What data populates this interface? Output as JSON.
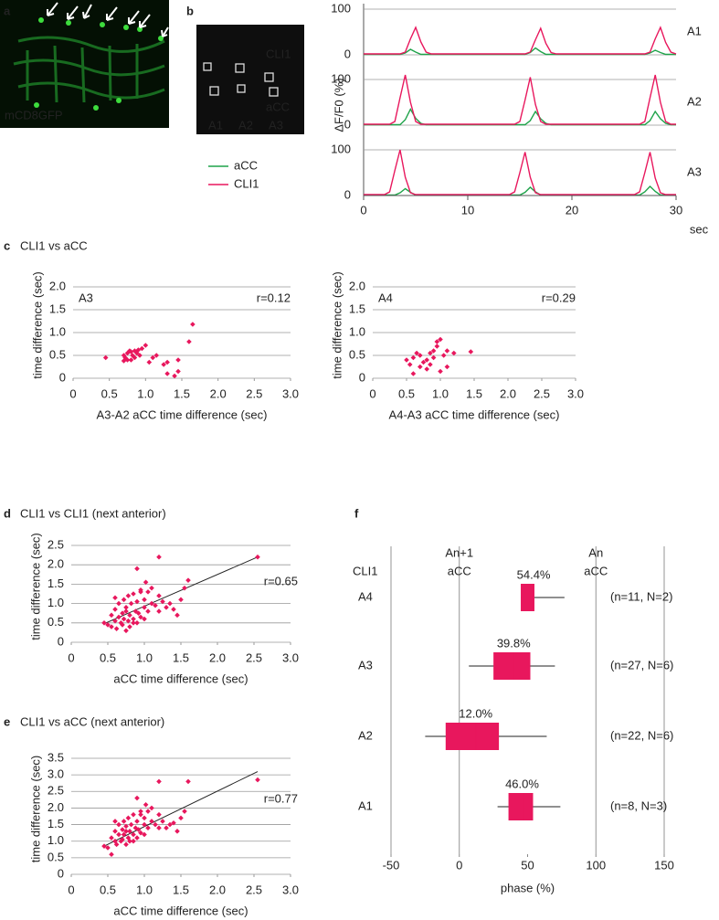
{
  "figure": {
    "panel_labels": [
      "a",
      "b",
      "c",
      "d",
      "e",
      "f"
    ],
    "headings": [
      "CLI1 vs aCC",
      "CLI1 vs CLI1 (next anterior)",
      "CLI1 vs aCC (next anterior)"
    ],
    "image_a": {
      "text": "mCD8GFP"
    },
    "image_b": {
      "cells": [
        "CLI1",
        "aCC"
      ],
      "segments": [
        "A1",
        "A2",
        "A3"
      ]
    }
  },
  "chart_data": [
    {
      "type": "trace",
      "xlabel": "sec",
      "ylabel": "ΔF/F0 (%)",
      "xlim": [
        0,
        30
      ],
      "xticks": [
        0,
        10,
        20,
        30
      ],
      "ylim": [
        0,
        120
      ],
      "yticks": [
        0,
        100
      ],
      "series": [
        {
          "name": "aCC",
          "color": "#1fa34a"
        },
        {
          "name": "CLI1",
          "color": "#e8175d"
        }
      ],
      "x": [
        0,
        0.5,
        1,
        1.5,
        2,
        2.5,
        3,
        3.5,
        4,
        4.5,
        5,
        5.5,
        6,
        6.5,
        7,
        7.5,
        8,
        8.5,
        9,
        9.5,
        10,
        10.5,
        11,
        11.5,
        12,
        12.5,
        13,
        13.5,
        14,
        14.5,
        15,
        15.5,
        16,
        16.5,
        17,
        17.5,
        18,
        18.5,
        19,
        19.5,
        20,
        20.5,
        21,
        21.5,
        22,
        22.5,
        23,
        23.5,
        24,
        24.5,
        25,
        25.5,
        26,
        26.5,
        27,
        27.5,
        28,
        28.5,
        29,
        29.5,
        30
      ],
      "rows": [
        {
          "label": "A1",
          "values": [
            [
              1,
              1,
              1,
              1,
              1,
              1,
              1,
              1,
              4,
              12,
              6,
              1,
              1,
              1,
              1,
              1,
              1,
              1,
              1,
              1,
              1,
              1,
              1,
              1,
              1,
              1,
              1,
              1,
              1,
              1,
              1,
              1,
              5,
              15,
              7,
              1,
              1,
              1,
              1,
              1,
              1,
              1,
              1,
              1,
              1,
              1,
              1,
              1,
              1,
              1,
              1,
              1,
              1,
              1,
              1,
              4,
              10,
              5,
              1,
              1,
              1
            ],
            [
              2,
              2,
              2,
              2,
              2,
              2,
              2,
              2,
              6,
              35,
              60,
              28,
              6,
              2,
              2,
              2,
              2,
              2,
              2,
              2,
              2,
              2,
              2,
              2,
              2,
              2,
              2,
              2,
              2,
              2,
              2,
              2,
              6,
              33,
              58,
              25,
              5,
              2,
              2,
              2,
              2,
              2,
              2,
              2,
              2,
              2,
              2,
              2,
              2,
              2,
              2,
              2,
              2,
              2,
              2,
              6,
              35,
              60,
              27,
              6,
              2
            ]
          ]
        },
        {
          "label": "A2",
          "values": [
            [
              1,
              1,
              1,
              1,
              1,
              1,
              1,
              1,
              12,
              35,
              15,
              4,
              1,
              1,
              1,
              1,
              1,
              1,
              1,
              1,
              1,
              1,
              1,
              1,
              1,
              1,
              1,
              1,
              1,
              1,
              1,
              1,
              10,
              30,
              14,
              4,
              1,
              1,
              1,
              1,
              1,
              1,
              1,
              1,
              1,
              1,
              1,
              1,
              1,
              1,
              1,
              1,
              1,
              1,
              1,
              10,
              30,
              14,
              4,
              1,
              1
            ],
            [
              2,
              2,
              2,
              2,
              2,
              2,
              8,
              60,
              110,
              50,
              8,
              2,
              2,
              2,
              2,
              2,
              2,
              2,
              2,
              2,
              2,
              2,
              2,
              2,
              2,
              2,
              2,
              2,
              2,
              2,
              8,
              55,
              105,
              45,
              8,
              2,
              2,
              2,
              2,
              2,
              2,
              2,
              2,
              2,
              2,
              2,
              2,
              2,
              2,
              2,
              2,
              2,
              2,
              2,
              8,
              60,
              110,
              50,
              8,
              2,
              2
            ]
          ]
        },
        {
          "label": "A3",
          "values": [
            [
              1,
              1,
              1,
              1,
              1,
              1,
              1,
              6,
              15,
              7,
              1,
              1,
              1,
              1,
              1,
              1,
              1,
              1,
              1,
              1,
              1,
              1,
              1,
              1,
              1,
              1,
              1,
              1,
              1,
              1,
              1,
              7,
              18,
              8,
              1,
              1,
              1,
              1,
              1,
              1,
              1,
              1,
              1,
              1,
              1,
              1,
              1,
              1,
              1,
              1,
              1,
              1,
              1,
              1,
              8,
              20,
              9,
              1,
              1,
              1,
              1
            ],
            [
              2,
              2,
              2,
              2,
              2,
              8,
              55,
              100,
              40,
              6,
              2,
              2,
              2,
              2,
              2,
              2,
              2,
              2,
              2,
              2,
              2,
              2,
              2,
              2,
              2,
              2,
              2,
              2,
              2,
              8,
              50,
              95,
              40,
              6,
              2,
              2,
              2,
              2,
              2,
              2,
              2,
              2,
              2,
              2,
              2,
              2,
              2,
              2,
              2,
              2,
              2,
              2,
              2,
              8,
              50,
              95,
              38,
              6,
              2,
              2,
              2
            ]
          ]
        }
      ]
    },
    {
      "type": "scatter",
      "tag": "A3",
      "annotation": "r=0.12",
      "color": "#e8175d",
      "xlabel": "A3-A2 aCC time difference (sec)",
      "ylabel": "time difference (sec)",
      "xlim": [
        0,
        3
      ],
      "xticks": [
        0,
        0.5,
        {
          "value": 1,
          "label": "1.0"
        },
        1.5,
        {
          "value": 2,
          "label": "2.0"
        },
        2.5,
        {
          "value": 3,
          "label": "3.0"
        }
      ],
      "ylim": [
        0,
        2
      ],
      "yticks": [
        0,
        0.5,
        {
          "value": 1,
          "label": "1.0"
        },
        1.5,
        {
          "value": 2,
          "label": "2.0"
        }
      ],
      "x": [
        0.45,
        0.7,
        0.72,
        0.75,
        0.78,
        0.8,
        0.82,
        0.85,
        0.88,
        0.9,
        0.7,
        0.75,
        0.8,
        0.95,
        1.0,
        0.85,
        1.05,
        1.1,
        1.15,
        1.25,
        1.3,
        1.4,
        1.45,
        1.3,
        1.45,
        1.6,
        1.65,
        0.92
      ],
      "y": [
        0.45,
        0.5,
        0.45,
        0.55,
        0.6,
        0.4,
        0.5,
        0.6,
        0.55,
        0.62,
        0.38,
        0.4,
        0.58,
        0.65,
        0.72,
        0.45,
        0.35,
        0.45,
        0.5,
        0.3,
        0.1,
        0.05,
        0.15,
        0.35,
        0.4,
        0.8,
        1.18,
        0.5
      ]
    },
    {
      "type": "scatter",
      "tag": "A4",
      "annotation": "r=0.29",
      "color": "#e8175d",
      "xlabel": "A4-A3 aCC time difference (sec)",
      "ylabel": "time difference (sec)",
      "xlim": [
        0,
        3
      ],
      "xticks": [
        0,
        0.5,
        {
          "value": 1,
          "label": "1.0"
        },
        1.5,
        {
          "value": 2,
          "label": "2.0"
        },
        2.5,
        {
          "value": 3,
          "label": "3.0"
        }
      ],
      "ylim": [
        0,
        2
      ],
      "yticks": [
        0,
        0.5,
        {
          "value": 1,
          "label": "1.0"
        },
        1.5,
        {
          "value": 2,
          "label": "2.0"
        }
      ],
      "x": [
        0.5,
        0.55,
        0.6,
        0.65,
        0.7,
        0.75,
        0.8,
        0.85,
        0.9,
        0.95,
        1.0,
        0.9,
        1.05,
        0.8,
        0.7,
        0.6,
        1.1,
        1.2,
        1.45,
        1.0,
        0.85,
        0.95,
        1.1
      ],
      "y": [
        0.4,
        0.3,
        0.45,
        0.55,
        0.5,
        0.35,
        0.2,
        0.3,
        0.45,
        0.7,
        0.85,
        0.6,
        0.5,
        0.4,
        0.25,
        0.1,
        0.6,
        0.55,
        0.58,
        0.15,
        0.55,
        0.8,
        0.25
      ]
    },
    {
      "type": "scatter",
      "annotation": "r=0.65",
      "color": "#e8175d",
      "xlabel": "aCC time difference (sec)",
      "ylabel": "time difference (sec)",
      "xlim": [
        0,
        3
      ],
      "xticks": [
        0,
        0.5,
        {
          "value": 1,
          "label": "1.0"
        },
        1.5,
        {
          "value": 2,
          "label": "2.0"
        },
        2.5,
        {
          "value": 3,
          "label": "3.0"
        }
      ],
      "ylim": [
        0,
        2.5
      ],
      "yticks": [
        0,
        0.5,
        {
          "value": 1,
          "label": "1.0"
        },
        1.5,
        {
          "value": 2,
          "label": "2.0"
        },
        2.5
      ],
      "fit": {
        "x": [
          0.45,
          2.55
        ],
        "y": [
          0.48,
          2.2
        ]
      },
      "x": [
        0.45,
        0.5,
        0.55,
        0.55,
        0.6,
        0.6,
        0.62,
        0.65,
        0.65,
        0.68,
        0.7,
        0.7,
        0.72,
        0.72,
        0.75,
        0.75,
        0.78,
        0.78,
        0.8,
        0.8,
        0.82,
        0.85,
        0.85,
        0.88,
        0.9,
        0.9,
        0.92,
        0.95,
        0.95,
        1.0,
        1.0,
        1.02,
        1.05,
        1.05,
        1.1,
        1.1,
        1.15,
        1.2,
        1.2,
        1.25,
        1.3,
        1.35,
        1.4,
        1.45,
        1.5,
        1.55,
        1.6,
        0.9,
        0.95,
        1.0,
        1.2,
        2.55,
        0.6,
        0.75,
        0.85
      ],
      "y": [
        0.5,
        0.45,
        0.7,
        0.4,
        0.55,
        0.85,
        0.35,
        0.65,
        1.0,
        0.5,
        0.45,
        0.75,
        0.6,
        1.1,
        0.3,
        0.9,
        0.55,
        1.2,
        0.7,
        0.4,
        1.0,
        0.6,
        1.25,
        0.8,
        0.5,
        1.05,
        0.75,
        1.35,
        0.65,
        0.9,
        1.1,
        1.55,
        0.8,
        1.3,
        1.0,
        1.4,
        0.95,
        1.2,
        2.2,
        1.05,
        0.9,
        1.0,
        0.85,
        0.7,
        1.1,
        1.4,
        1.6,
        1.9,
        1.3,
        0.6,
        0.8,
        2.2,
        1.15,
        0.8,
        0.5
      ]
    },
    {
      "type": "scatter",
      "annotation": "r=0.77",
      "color": "#e8175d",
      "xlabel": "aCC time difference (sec)",
      "ylabel": "time difference (sec)",
      "xlim": [
        0,
        3
      ],
      "xticks": [
        0,
        0.5,
        {
          "value": 1,
          "label": "1.0"
        },
        1.5,
        {
          "value": 2,
          "label": "2.0"
        },
        2.5,
        {
          "value": 3,
          "label": "3.0"
        }
      ],
      "ylim": [
        0,
        3.5
      ],
      "yticks": [
        0,
        0.5,
        {
          "value": 1,
          "label": "1.0"
        },
        1.5,
        {
          "value": 2,
          "label": "2.0"
        },
        2.5,
        {
          "value": 3,
          "label": "3.0"
        },
        3.5
      ],
      "fit": {
        "x": [
          0.45,
          2.55
        ],
        "y": [
          0.85,
          3.1
        ]
      },
      "x": [
        0.45,
        0.5,
        0.55,
        0.55,
        0.6,
        0.6,
        0.62,
        0.65,
        0.65,
        0.68,
        0.7,
        0.7,
        0.72,
        0.72,
        0.75,
        0.75,
        0.78,
        0.78,
        0.8,
        0.8,
        0.82,
        0.85,
        0.85,
        0.88,
        0.9,
        0.9,
        0.92,
        0.95,
        0.95,
        1.0,
        1.0,
        1.02,
        1.05,
        1.05,
        1.1,
        1.1,
        1.15,
        1.2,
        1.2,
        1.25,
        1.3,
        1.35,
        1.4,
        1.45,
        1.5,
        1.55,
        1.6,
        0.9,
        0.95,
        1.0,
        1.2,
        2.55,
        0.6,
        0.75,
        0.85
      ],
      "y": [
        0.85,
        0.8,
        1.1,
        0.6,
        1.0,
        1.3,
        0.9,
        1.2,
        1.5,
        1.0,
        1.05,
        1.35,
        1.2,
        1.6,
        0.9,
        1.45,
        1.1,
        1.7,
        1.3,
        1.0,
        1.5,
        1.2,
        1.8,
        1.4,
        1.1,
        1.6,
        1.35,
        1.9,
        1.25,
        1.5,
        1.7,
        2.1,
        1.4,
        1.9,
        1.6,
        2.0,
        1.5,
        1.8,
        2.8,
        1.6,
        1.4,
        1.5,
        1.55,
        1.3,
        1.7,
        1.9,
        2.8,
        2.3,
        1.8,
        1.2,
        1.4,
        2.85,
        1.6,
        1.3,
        1.0
      ]
    },
    {
      "type": "box",
      "color": "#e8175d",
      "category_header": "CLI1",
      "xlabel": "phase (%)",
      "xlim": [
        -50,
        150
      ],
      "xticks": [
        -50,
        0,
        50,
        100,
        150
      ],
      "xgrid": [
        -50,
        0,
        100,
        150
      ],
      "reference_lines": [
        {
          "value": 0,
          "lines": [
            "An+1",
            "aCC"
          ]
        },
        {
          "value": 100,
          "lines": [
            "An",
            "aCC"
          ]
        }
      ],
      "categories": [
        "A4",
        "A3",
        "A2",
        "A1"
      ],
      "values": [
        54.4,
        39.8,
        12.0,
        46.0
      ],
      "value_labels": [
        "54.4%",
        "39.8%",
        "12.0%",
        "46.0%"
      ],
      "box_low": [
        45,
        25,
        -10,
        36
      ],
      "box_high": [
        55,
        52,
        29,
        54
      ],
      "whisker_low": [
        45,
        7,
        -25,
        28
      ],
      "whisker_high": [
        77,
        70,
        64,
        74
      ],
      "notes": [
        "(n=11, N=2)",
        "(n=27, N=6)",
        "(n=22, N=6)",
        "(n=8, N=3)"
      ]
    }
  ]
}
